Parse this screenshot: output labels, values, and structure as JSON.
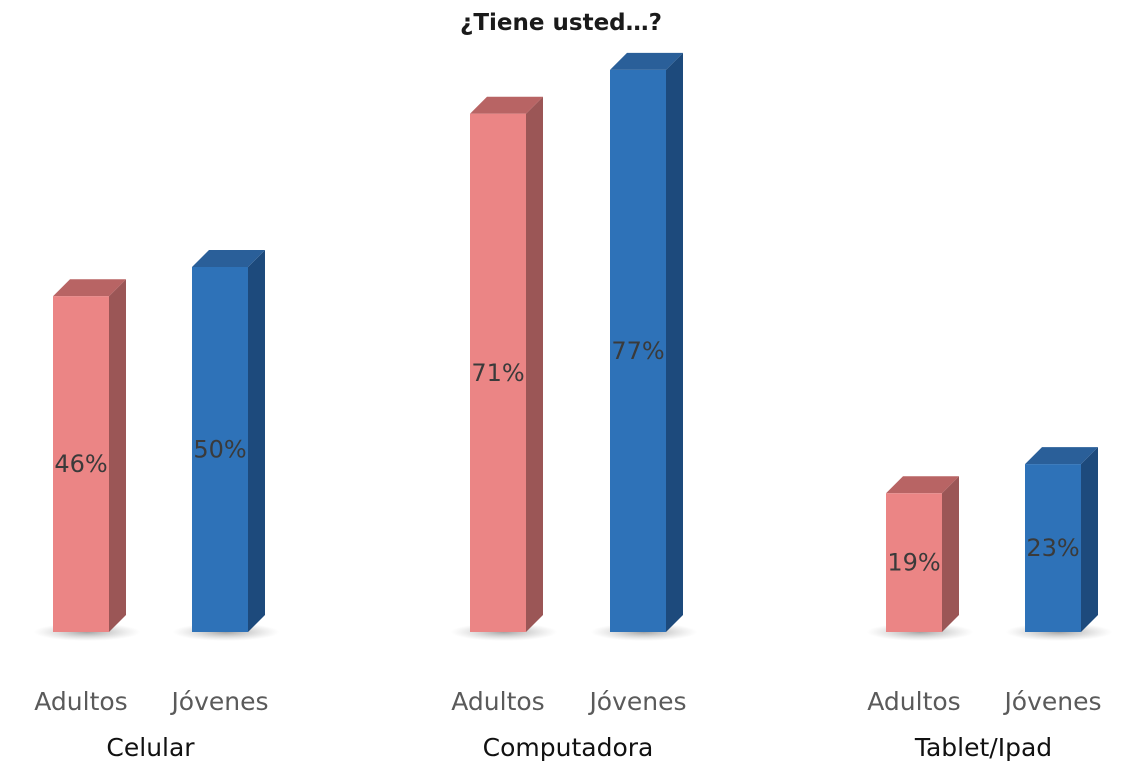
{
  "chart_data": {
    "type": "bar",
    "title": "¿Tiene usted…?",
    "categories": [
      "Celular",
      "Computadora",
      "Tablet/Ipad"
    ],
    "series": [
      {
        "name": "Adultos",
        "values": [
          46,
          71,
          19
        ],
        "color": "#eb8585",
        "side_color": "#9b5656",
        "top_color": "#b86464"
      },
      {
        "name": "Jóvenes",
        "values": [
          50,
          77,
          23
        ],
        "color": "#2e72b8",
        "side_color": "#1d4a7c",
        "top_color": "#2a5f99"
      }
    ],
    "value_suffix": "%",
    "ylim": [
      0,
      80
    ],
    "grid": false
  }
}
